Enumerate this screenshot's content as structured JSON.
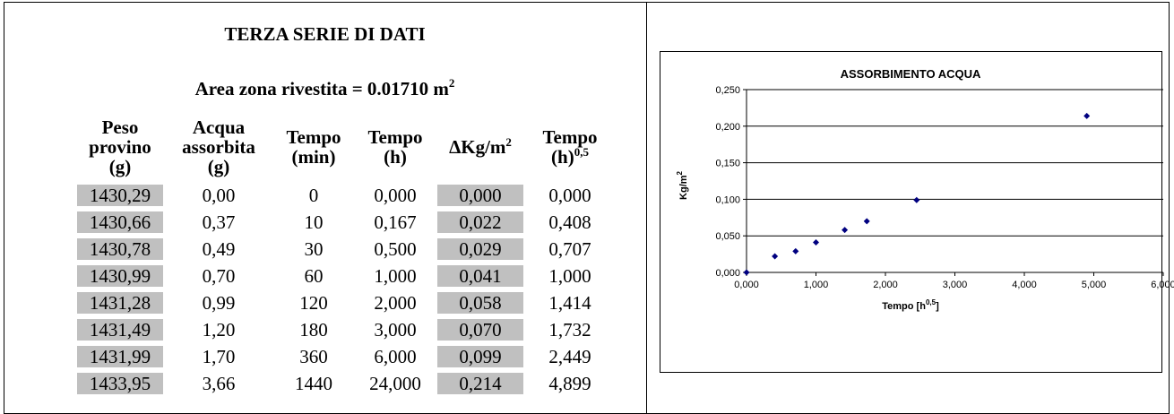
{
  "document": {
    "title": "TERZA SERIE DI DATI",
    "area_label": "Area zona rivestita = 0.01710 m",
    "area_sup": "2"
  },
  "table": {
    "headers": [
      {
        "lines": [
          "Peso",
          "provino",
          "(g)"
        ],
        "sup": ""
      },
      {
        "lines": [
          "Acqua",
          "assorbita",
          "(g)"
        ],
        "sup": ""
      },
      {
        "lines": [
          "Tempo",
          "(min)"
        ],
        "sup": ""
      },
      {
        "lines": [
          "Tempo",
          "(h)"
        ],
        "sup": ""
      },
      {
        "lines": [
          "ΔKg/m"
        ],
        "sup": "2"
      },
      {
        "lines": [
          "Tempo",
          "(h)"
        ],
        "sup": "0,5"
      }
    ],
    "rows": [
      [
        "1430,29",
        "0,00",
        "0",
        "0,000",
        "0,000",
        "0,000"
      ],
      [
        "1430,66",
        "0,37",
        "10",
        "0,167",
        "0,022",
        "0,408"
      ],
      [
        "1430,78",
        "0,49",
        "30",
        "0,500",
        "0,029",
        "0,707"
      ],
      [
        "1430,99",
        "0,70",
        "60",
        "1,000",
        "0,041",
        "1,000"
      ],
      [
        "1431,28",
        "0,99",
        "120",
        "2,000",
        "0,058",
        "1,414"
      ],
      [
        "1431,49",
        "1,20",
        "180",
        "3,000",
        "0,070",
        "1,732"
      ],
      [
        "1431,99",
        "1,70",
        "360",
        "6,000",
        "0,099",
        "2,449"
      ],
      [
        "1433,95",
        "3,66",
        "1440",
        "24,000",
        "0,214",
        "4,899"
      ]
    ],
    "shaded_columns": [
      0,
      4
    ],
    "shade_color": "#c0c0c0"
  },
  "chart_data": {
    "type": "scatter",
    "title": "ASSORBIMENTO ACQUA",
    "xlabel": "Tempo [h",
    "xlabel_sup": "0,5",
    "xlabel_close": "]",
    "ylabel": "Kg/m",
    "ylabel_sup": "2",
    "xlim": [
      0,
      6
    ],
    "ylim": [
      0,
      0.25
    ],
    "x_ticks": [
      "0,000",
      "1,000",
      "2,000",
      "3,000",
      "4,000",
      "5,000",
      "6,000"
    ],
    "y_ticks": [
      "0,000",
      "0,050",
      "0,100",
      "0,150",
      "0,200",
      "0,250"
    ],
    "grid": "horizontal",
    "marker_color": "#000080",
    "points": [
      {
        "x": 0.0,
        "y": 0.0
      },
      {
        "x": 0.408,
        "y": 0.022
      },
      {
        "x": 0.707,
        "y": 0.029
      },
      {
        "x": 1.0,
        "y": 0.041
      },
      {
        "x": 1.414,
        "y": 0.058
      },
      {
        "x": 1.732,
        "y": 0.07
      },
      {
        "x": 2.449,
        "y": 0.099
      },
      {
        "x": 4.899,
        "y": 0.214
      }
    ]
  }
}
